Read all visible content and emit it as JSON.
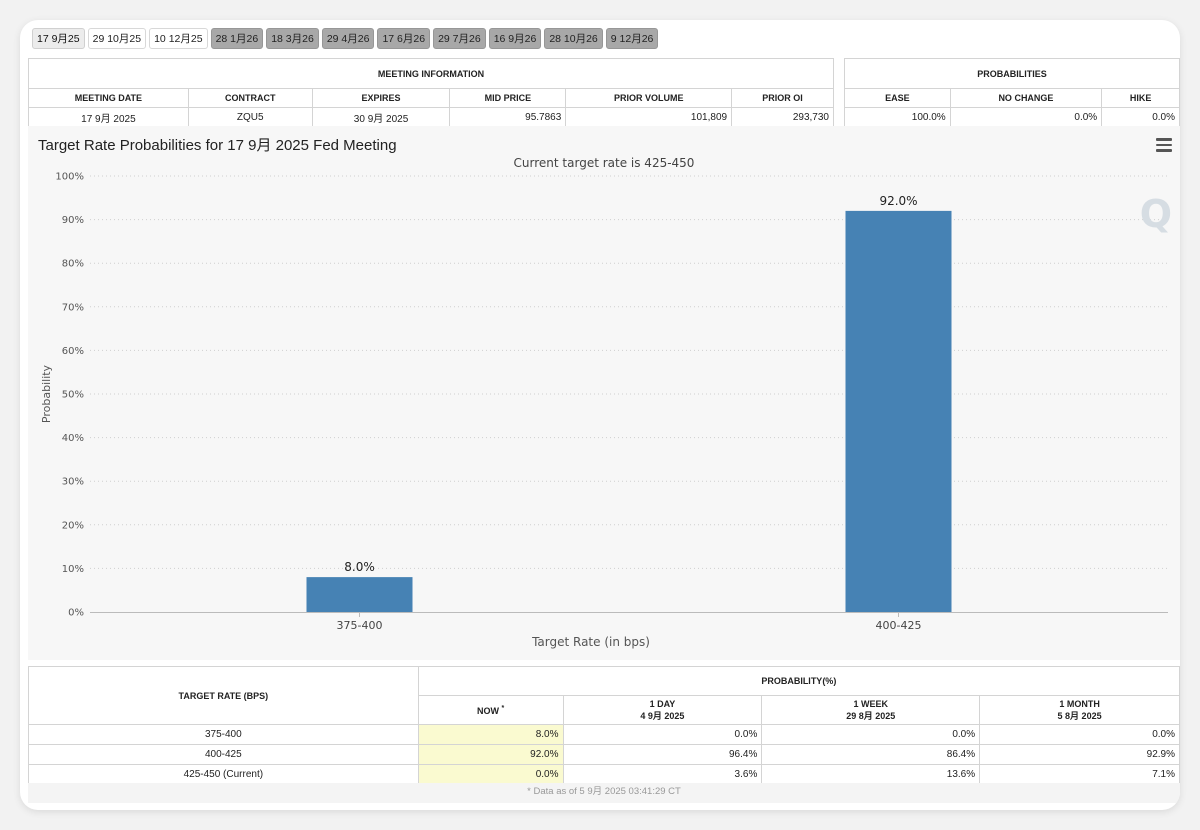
{
  "tabs": [
    "17 9月25",
    "29 10月25",
    "10 12月25",
    "28 1月26",
    "18 3月26",
    "29 4月26",
    "17 6月26",
    "29 7月26",
    "16 9月26",
    "28 10月26",
    "9 12月26"
  ],
  "meeting_info": {
    "header": "MEETING INFORMATION",
    "columns": [
      "MEETING DATE",
      "CONTRACT",
      "EXPIRES",
      "MID PRICE",
      "PRIOR VOLUME",
      "PRIOR OI"
    ],
    "row": [
      "17 9月 2025",
      "ZQU5",
      "30 9月 2025",
      "95.7863",
      "101,809",
      "293,730"
    ]
  },
  "probabilities": {
    "header": "PROBABILITIES",
    "columns": [
      "EASE",
      "NO CHANGE",
      "HIKE"
    ],
    "row": [
      "100.0%",
      "0.0%",
      "0.0%"
    ]
  },
  "chart_data": {
    "type": "bar",
    "title": "Target Rate Probabilities for 17 9月 2025 Fed Meeting",
    "subtitle": "Current target rate is 425-450",
    "xlabel": "Target Rate (in bps)",
    "ylabel": "Probability",
    "categories": [
      "375-400",
      "400-425"
    ],
    "values": [
      8.0,
      92.0
    ],
    "data_labels": [
      "8.0%",
      "92.0%"
    ],
    "ylim": [
      0,
      100
    ],
    "yticks": [
      "0%",
      "10%",
      "20%",
      "30%",
      "40%",
      "50%",
      "60%",
      "70%",
      "80%",
      "90%",
      "100%"
    ],
    "grid": true,
    "bar_color": "#4682b4"
  },
  "bottom_table": {
    "rate_header": "TARGET RATE (BPS)",
    "prob_header": "PROBABILITY(%)",
    "now_label": "NOW",
    "now_mark": "*",
    "periods": [
      {
        "label": "1 DAY",
        "date": "4 9月 2025"
      },
      {
        "label": "1 WEEK",
        "date": "29 8月 2025"
      },
      {
        "label": "1 MONTH",
        "date": "5 8月 2025"
      }
    ],
    "rows": [
      {
        "rate": "375-400",
        "values": [
          "8.0%",
          "0.0%",
          "0.0%",
          "0.0%"
        ]
      },
      {
        "rate": "400-425",
        "values": [
          "92.0%",
          "96.4%",
          "86.4%",
          "92.9%"
        ]
      },
      {
        "rate": "425-450 (Current)",
        "values": [
          "0.0%",
          "3.6%",
          "13.6%",
          "7.1%"
        ]
      }
    ]
  },
  "footnote": "* Data as of 5 9月 2025 03:41:29 CT",
  "logo_text": "Q"
}
